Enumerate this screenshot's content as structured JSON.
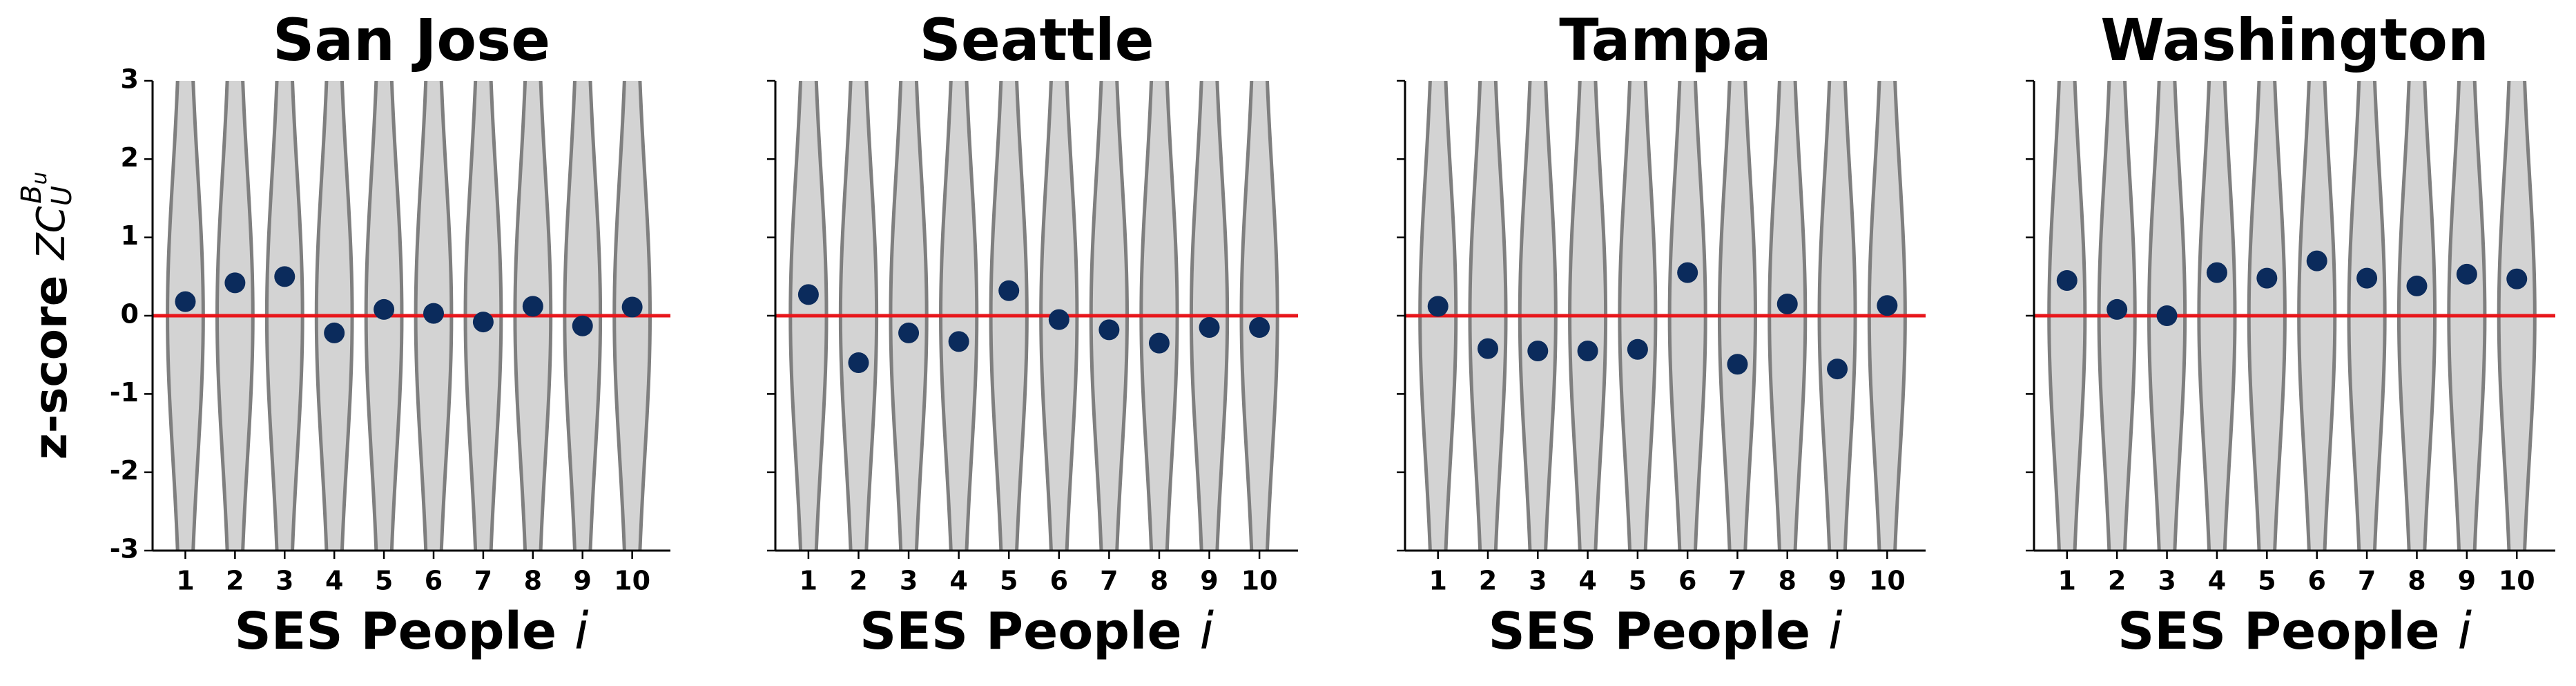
{
  "chart_data": [
    {
      "type": "dot",
      "title": "San Jose",
      "categories": [
        "1",
        "2",
        "3",
        "4",
        "5",
        "6",
        "7",
        "8",
        "9",
        "10"
      ],
      "values": [
        0.18,
        0.42,
        0.5,
        -0.22,
        0.08,
        0.03,
        -0.08,
        0.12,
        -0.13,
        0.11
      ],
      "color": "#0b2b5c",
      "ylim": [
        -3,
        3
      ],
      "yticks": [
        -3,
        -2,
        -1,
        0,
        1,
        2,
        3
      ],
      "show_ytick_labels": true,
      "ylabel": {
        "text": "z-score",
        "symbol": "ZC",
        "subscript": "U",
        "superscript": "B",
        "superscript_subscript": "u"
      },
      "xlabel": {
        "text": "SES People",
        "symbol": "i"
      },
      "reference_line": {
        "value": 0,
        "color": "#e8171c"
      }
    },
    {
      "type": "dot",
      "title": "Seattle",
      "categories": [
        "1",
        "2",
        "3",
        "4",
        "5",
        "6",
        "7",
        "8",
        "9",
        "10"
      ],
      "values": [
        0.27,
        -0.6,
        -0.22,
        -0.33,
        0.32,
        -0.05,
        -0.18,
        -0.35,
        -0.15,
        -0.15
      ],
      "color": "#0b2b5c",
      "ylim": [
        -3,
        3
      ],
      "yticks": [
        -3,
        -2,
        -1,
        0,
        1,
        2,
        3
      ],
      "show_ytick_labels": false,
      "xlabel": {
        "text": "SES People",
        "symbol": "i"
      },
      "reference_line": {
        "value": 0,
        "color": "#e8171c"
      }
    },
    {
      "type": "dot",
      "title": "Tampa",
      "categories": [
        "1",
        "2",
        "3",
        "4",
        "5",
        "6",
        "7",
        "8",
        "9",
        "10"
      ],
      "values": [
        0.12,
        -0.42,
        -0.45,
        -0.45,
        -0.43,
        0.55,
        -0.62,
        0.15,
        -0.68,
        0.13
      ],
      "color": "#0b2b5c",
      "ylim": [
        -3,
        3
      ],
      "yticks": [
        -3,
        -2,
        -1,
        0,
        1,
        2,
        3
      ],
      "show_ytick_labels": false,
      "xlabel": {
        "text": "SES People",
        "symbol": "i"
      },
      "reference_line": {
        "value": 0,
        "color": "#e8171c"
      }
    },
    {
      "type": "dot",
      "title": "Washington",
      "categories": [
        "1",
        "2",
        "3",
        "4",
        "5",
        "6",
        "7",
        "8",
        "9",
        "10"
      ],
      "values": [
        0.45,
        0.08,
        0.0,
        0.55,
        0.48,
        0.7,
        0.48,
        0.38,
        0.53,
        0.47
      ],
      "color": "#0b2b5c",
      "ylim": [
        -3,
        3
      ],
      "yticks": [
        -3,
        -2,
        -1,
        0,
        1,
        2,
        3
      ],
      "show_ytick_labels": false,
      "xlabel": {
        "text": "SES People",
        "symbol": "i"
      },
      "reference_line": {
        "value": 0,
        "color": "#e8171c"
      }
    }
  ]
}
